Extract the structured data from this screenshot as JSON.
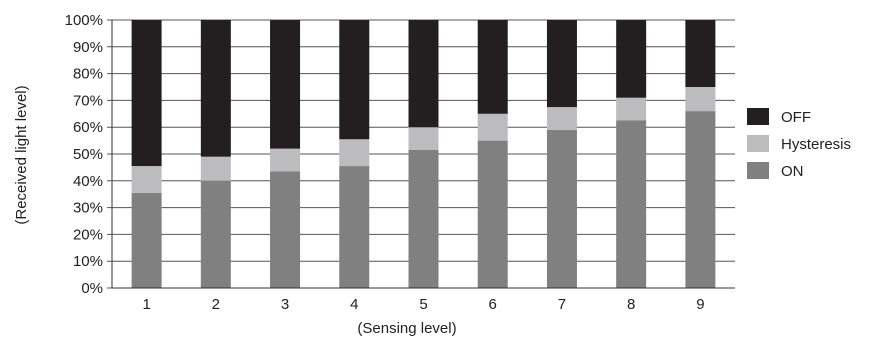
{
  "chart_data": {
    "type": "bar",
    "stacked": true,
    "title": "",
    "xlabel": "(Sensing level)",
    "ylabel": "(Received light level)",
    "ylim": [
      0,
      100
    ],
    "yticks": [
      "0%",
      "10%",
      "20%",
      "30%",
      "40%",
      "50%",
      "60%",
      "70%",
      "80%",
      "90%",
      "100%"
    ],
    "categories": [
      "1",
      "2",
      "3",
      "4",
      "5",
      "6",
      "7",
      "8",
      "9"
    ],
    "series": [
      {
        "name": "ON",
        "color": "#808080",
        "values": [
          35.5,
          40,
          43.5,
          45.5,
          51.5,
          55,
          59,
          62.5,
          66
        ]
      },
      {
        "name": "Hysteresis",
        "color": "#bcbcbe",
        "values": [
          10,
          9,
          8.5,
          10,
          8.5,
          10,
          8.5,
          8.5,
          9
        ]
      },
      {
        "name": "OFF",
        "color": "#231f20",
        "values": [
          54.5,
          51,
          48,
          44.5,
          40,
          35,
          32.5,
          29,
          25
        ]
      }
    ],
    "legend_position": "right",
    "legend_order": [
      "OFF",
      "Hysteresis",
      "ON"
    ],
    "grid": true
  }
}
